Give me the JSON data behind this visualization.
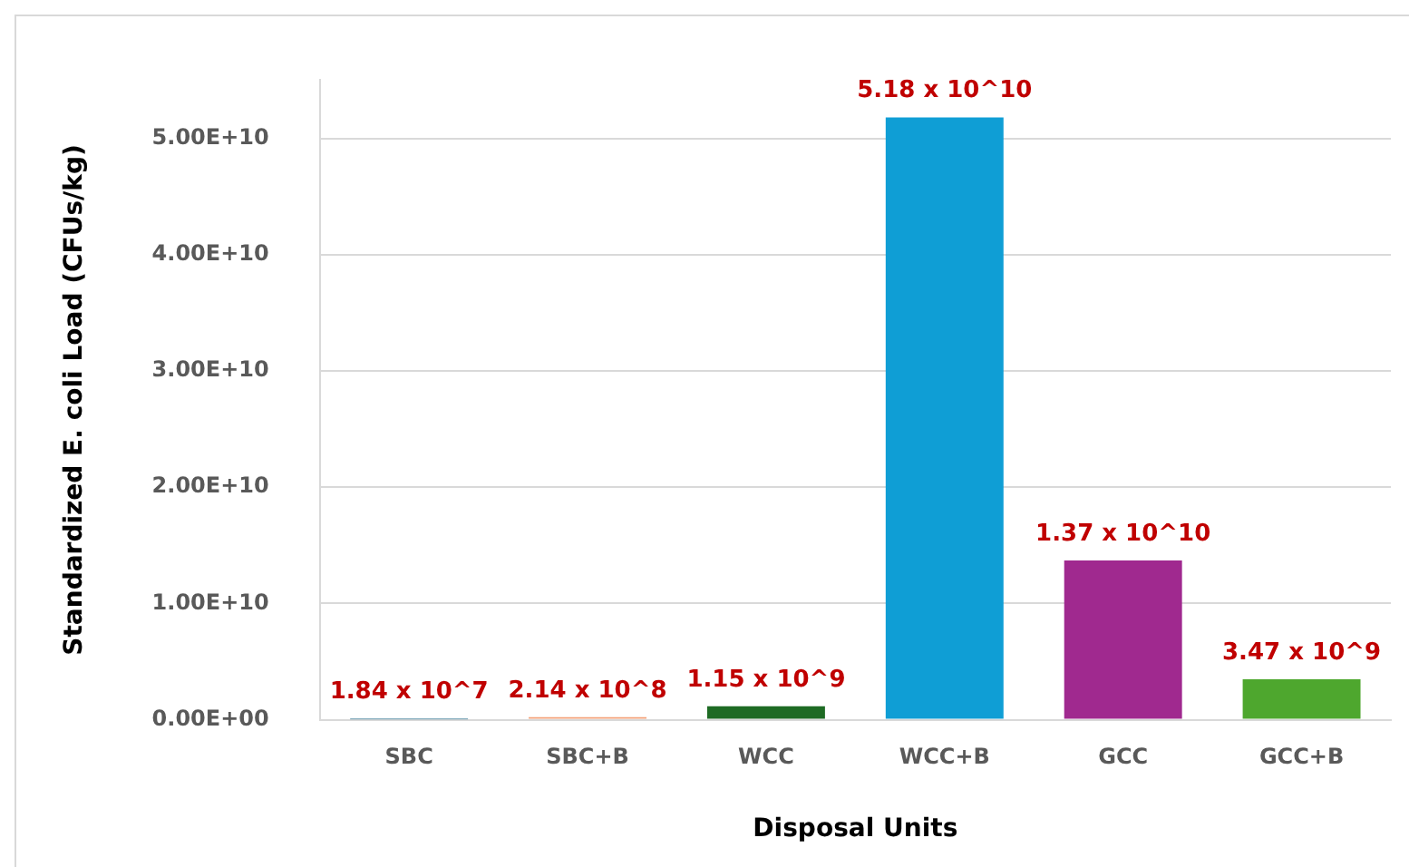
{
  "chart_data": {
    "type": "bar",
    "xlabel": "Disposal Units",
    "ylabel": "Standardized E. coli Load (CFUs/kg)",
    "categories": [
      "SBC",
      "SBC+B",
      "WCC",
      "WCC+B",
      "GCC",
      "GCC+B"
    ],
    "values": [
      18400000.0,
      214000000.0,
      1150000000.0,
      51800000000.0,
      13700000000.0,
      3470000000.0
    ],
    "colors": [
      "#156082",
      "#f4a27a",
      "#1e6b24",
      "#0f9ed5",
      "#a0298f",
      "#4ea72e"
    ],
    "value_labels": [
      "1.84 x 10^7",
      "2.14 x 10^8",
      "1.15 x 10^9",
      "5.18 x 10^10",
      "1.37 x 10^10",
      "3.47 x 10^9"
    ],
    "ylim": [
      0,
      55000000000.0
    ],
    "yticks": [
      {
        "value": 0,
        "label": "0.00E+00"
      },
      {
        "value": 10000000000.0,
        "label": "1.00E+10"
      },
      {
        "value": 20000000000.0,
        "label": "2.00E+10"
      },
      {
        "value": 30000000000.0,
        "label": "3.00E+10"
      },
      {
        "value": 40000000000.0,
        "label": "4.00E+10"
      },
      {
        "value": 50000000000.0,
        "label": "5.00E+10"
      }
    ],
    "grid": "y",
    "legend": false
  }
}
